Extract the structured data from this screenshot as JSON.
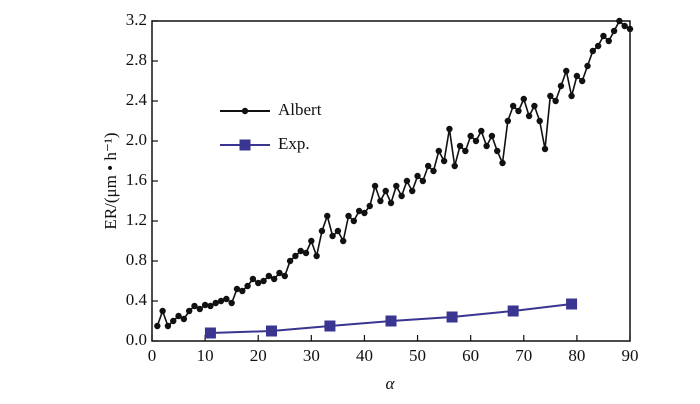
{
  "chart_data": {
    "type": "line",
    "xlabel": "α",
    "ylabel": "ER/(μm • h⁻¹)",
    "xlim": [
      0,
      90
    ],
    "ylim": [
      0,
      3.2
    ],
    "xticks": [
      0,
      10,
      20,
      30,
      40,
      50,
      60,
      70,
      80,
      90
    ],
    "yticks": [
      {
        "value": 0,
        "label": "0.0"
      },
      0.4,
      0.8,
      1.2,
      1.6,
      {
        "value": 2,
        "label": "2.0"
      },
      2.4,
      2.8,
      3.2
    ],
    "legend": "upper left",
    "series": [
      {
        "name": "Albert",
        "color": "#111111",
        "marker": "circle",
        "x": [
          1,
          2,
          3,
          4,
          5,
          6,
          7,
          8,
          9,
          10,
          11,
          12,
          13,
          14,
          15,
          16,
          17,
          18,
          19,
          20,
          21,
          22,
          23,
          24,
          25,
          26,
          27,
          28,
          29,
          30,
          31,
          32,
          33,
          34,
          35,
          36,
          37,
          38,
          39,
          40,
          41,
          42,
          43,
          44,
          45,
          46,
          47,
          48,
          49,
          50,
          51,
          52,
          53,
          54,
          55,
          56,
          57,
          58,
          59,
          60,
          61,
          62,
          63,
          64,
          65,
          66,
          67,
          68,
          69,
          70,
          71,
          72,
          73,
          74,
          75,
          76,
          77,
          78,
          79,
          80,
          81,
          82,
          83,
          84,
          85,
          86,
          87,
          88,
          89,
          90
        ],
        "values": [
          0.15,
          0.3,
          0.15,
          0.2,
          0.25,
          0.22,
          0.3,
          0.35,
          0.32,
          0.36,
          0.35,
          0.38,
          0.4,
          0.42,
          0.38,
          0.52,
          0.5,
          0.55,
          0.62,
          0.58,
          0.6,
          0.65,
          0.62,
          0.68,
          0.65,
          0.8,
          0.85,
          0.9,
          0.88,
          1.0,
          0.85,
          1.1,
          1.25,
          1.05,
          1.1,
          1.0,
          1.25,
          1.2,
          1.3,
          1.28,
          1.35,
          1.55,
          1.4,
          1.5,
          1.38,
          1.55,
          1.45,
          1.6,
          1.5,
          1.65,
          1.6,
          1.75,
          1.7,
          1.9,
          1.8,
          2.12,
          1.75,
          1.95,
          1.9,
          2.05,
          2.0,
          2.1,
          1.95,
          2.05,
          1.9,
          1.78,
          2.2,
          2.35,
          2.3,
          2.42,
          2.25,
          2.35,
          2.2,
          1.92,
          2.45,
          2.4,
          2.55,
          2.7,
          2.45,
          2.65,
          2.6,
          2.75,
          2.9,
          2.95,
          3.05,
          3.0,
          3.1,
          3.2,
          3.15,
          3.12
        ]
      },
      {
        "name": "Exp.",
        "color": "#3a3590",
        "marker": "square",
        "x": [
          11,
          22.5,
          33.5,
          45,
          56.5,
          68,
          79
        ],
        "values": [
          0.08,
          0.1,
          0.15,
          0.2,
          0.24,
          0.3,
          0.37
        ]
      }
    ]
  }
}
